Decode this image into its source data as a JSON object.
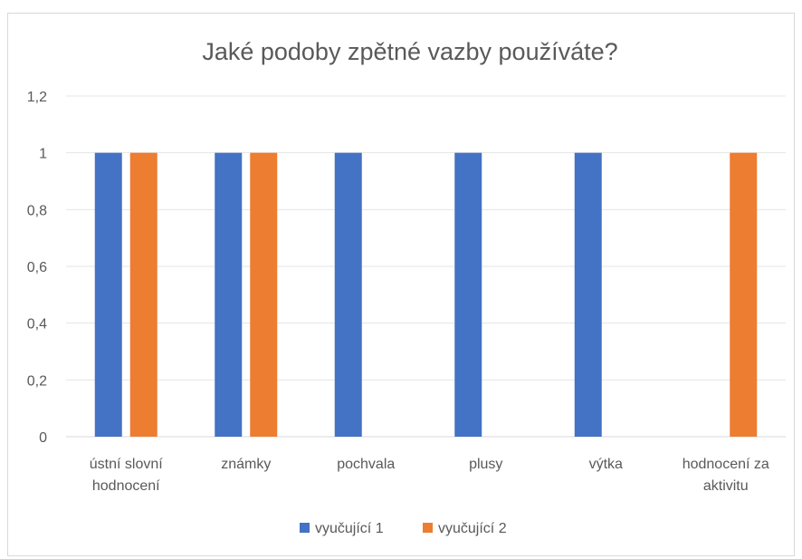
{
  "chart_data": {
    "type": "bar",
    "title": "Jaké podoby zpětné vazby používáte?",
    "categories": [
      [
        "ústní slovní",
        "hodnocení"
      ],
      [
        "známky"
      ],
      [
        "pochvala"
      ],
      [
        "plusy"
      ],
      [
        "výtka"
      ],
      [
        "hodnocení za",
        "aktivitu"
      ]
    ],
    "series": [
      {
        "name": "vyučující 1",
        "color": "#4472C4",
        "values": [
          1,
          1,
          1,
          1,
          1,
          0
        ]
      },
      {
        "name": "vyučující 2",
        "color": "#ED7D31",
        "values": [
          1,
          1,
          0,
          0,
          0,
          1
        ]
      }
    ],
    "ylim": [
      0,
      1.2
    ],
    "yticks": [
      "0",
      "0,2",
      "0,4",
      "0,6",
      "0,8",
      "1",
      "1,2"
    ],
    "grid": true,
    "legend": "bottom"
  }
}
